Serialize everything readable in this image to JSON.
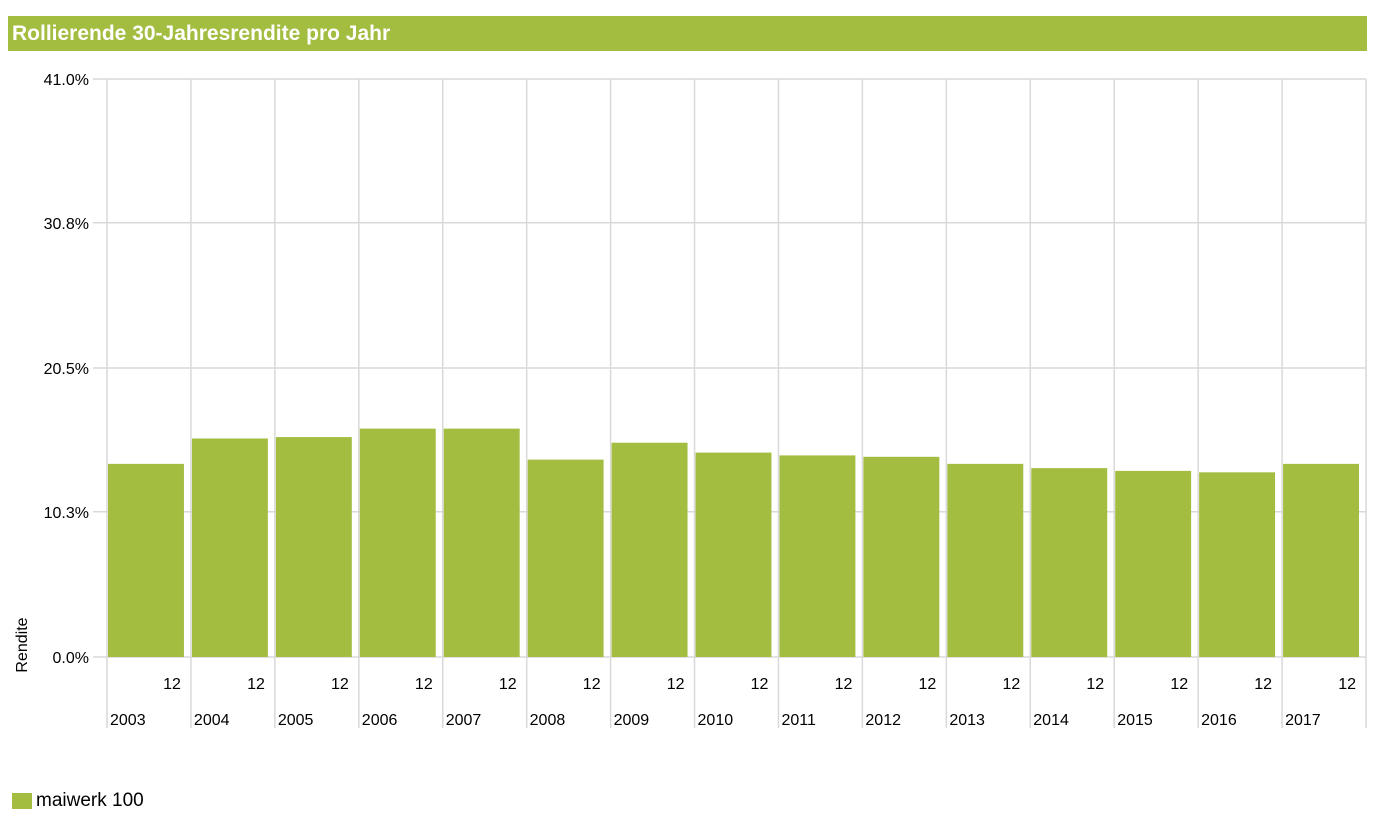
{
  "chart_data": {
    "type": "bar",
    "title": "Rollierende 30-Jahresrendite pro Jahr",
    "ylabel": "Rendite",
    "xlabel": "",
    "ylim": [
      0,
      41.0
    ],
    "yticks": [
      "41.0%",
      "30.8%",
      "20.5%",
      "10.3%",
      "0.0%"
    ],
    "ytick_values": [
      41.0,
      30.8,
      20.5,
      10.3,
      0.0
    ],
    "categories": [
      "2003",
      "2004",
      "2005",
      "2006",
      "2007",
      "2008",
      "2009",
      "2010",
      "2011",
      "2012",
      "2013",
      "2014",
      "2015",
      "2016",
      "2017"
    ],
    "month_labels": [
      "12",
      "12",
      "12",
      "12",
      "12",
      "12",
      "12",
      "12",
      "12",
      "12",
      "12",
      "12",
      "12",
      "12",
      "12"
    ],
    "series": [
      {
        "name": "maiwerk 100",
        "color": "#a3bd40",
        "values": [
          13.7,
          15.5,
          15.6,
          16.2,
          16.2,
          14.0,
          15.2,
          14.5,
          14.3,
          14.2,
          13.7,
          13.4,
          13.2,
          13.1,
          13.7
        ]
      }
    ],
    "grid": true,
    "legend_position": "bottom-left"
  }
}
